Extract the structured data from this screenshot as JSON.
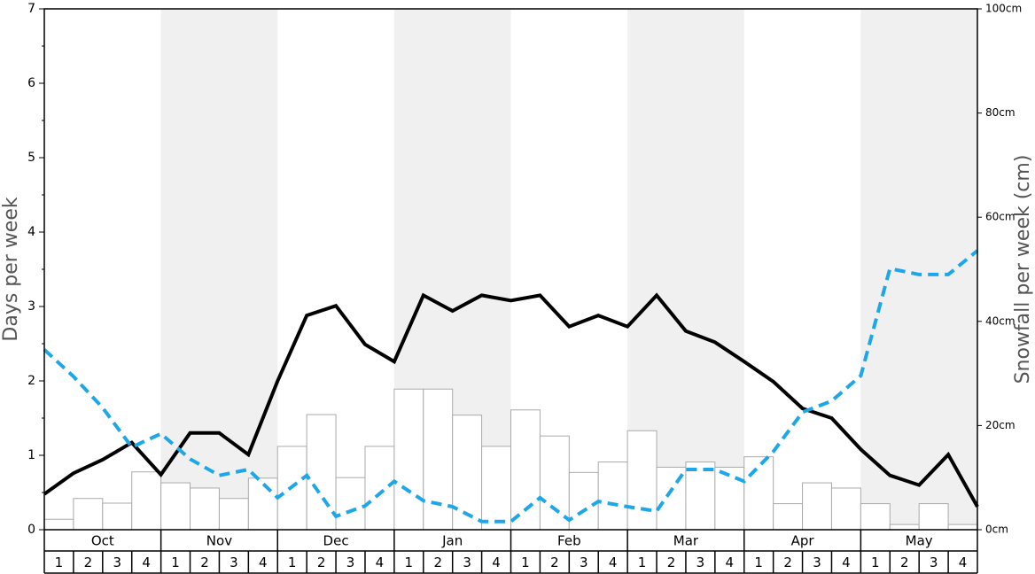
{
  "chart_data": {
    "type": "bar_line",
    "ylabel": "Days per week",
    "y2label": "Snowfall per week (cm)",
    "months": [
      "Oct",
      "Nov",
      "Dec",
      "Jan",
      "Feb",
      "Mar",
      "Apr",
      "May"
    ],
    "weeks": [
      "1",
      "2",
      "3",
      "4"
    ],
    "ylim": [
      0,
      7
    ],
    "yticks": [
      0,
      1,
      2,
      3,
      4,
      5,
      6,
      7
    ],
    "yticks_minor": [
      0.5,
      1.5,
      2.5,
      3.5,
      4.5,
      5.5,
      6.5
    ],
    "y2lim": [
      0,
      100
    ],
    "y2ticks": [
      {
        "value": 0,
        "label": "0cm"
      },
      {
        "value": 20,
        "label": "20cm"
      },
      {
        "value": 40,
        "label": "40cm"
      },
      {
        "value": 60,
        "label": "60cm"
      },
      {
        "value": 80,
        "label": "80cm"
      },
      {
        "value": 100,
        "label": "100cm"
      }
    ],
    "bars": {
      "axis": "y2",
      "color": "#ffffff",
      "edge_color": "#aaaaaa",
      "values": [
        2,
        6,
        5.1,
        11.1,
        9,
        8,
        6,
        9.9,
        16,
        22.1,
        10,
        16,
        27,
        27,
        22,
        16,
        23,
        18,
        11,
        13,
        19,
        12,
        13,
        12,
        14,
        5,
        9,
        8,
        5,
        1,
        5,
        1
      ]
    },
    "lines": [
      {
        "color": "#000000",
        "style": "solid",
        "values": [
          0.48,
          0.76,
          0.94,
          1.17,
          0.74,
          1.3,
          1.3,
          1.01,
          2.0,
          2.88,
          3.01,
          2.49,
          2.26,
          3.15,
          2.94,
          3.15,
          3.08,
          3.15,
          2.73,
          2.88,
          2.73,
          3.15,
          2.67,
          2.52,
          2.26,
          1.99,
          1.63,
          1.5,
          1.08,
          0.73,
          0.6,
          1.01,
          0.31
        ]
      },
      {
        "color": "#1ea7e8",
        "style": "dashed",
        "values": [
          2.42,
          2.06,
          1.64,
          1.11,
          1.29,
          0.95,
          0.73,
          0.81,
          0.43,
          0.73,
          0.18,
          0.32,
          0.65,
          0.39,
          0.31,
          0.11,
          0.11,
          0.43,
          0.13,
          0.38,
          0.31,
          0.25,
          0.81,
          0.81,
          0.65,
          1.05,
          1.58,
          1.73,
          2.07,
          3.51,
          3.43,
          3.43,
          3.75
        ]
      }
    ]
  }
}
